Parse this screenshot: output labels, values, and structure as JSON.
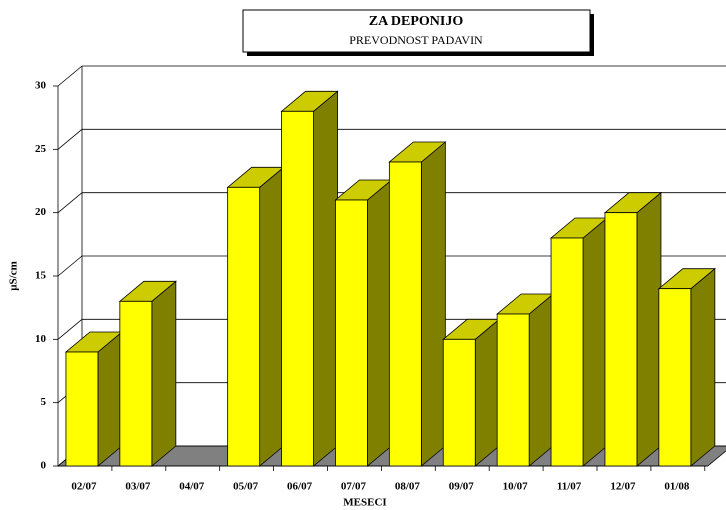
{
  "chart_data": {
    "type": "bar",
    "title": "ZA DEPONIJO",
    "subtitle": "PREVODNOST PADAVIN",
    "x_label": "MESECI",
    "y_label": "µS/cm",
    "categories": [
      "02/07",
      "03/07",
      "04/07",
      "05/07",
      "06/07",
      "07/07",
      "08/07",
      "09/07",
      "10/07",
      "11/07",
      "12/07",
      "01/08"
    ],
    "values": [
      9,
      13,
      null,
      22,
      28,
      21,
      24,
      10,
      12,
      18,
      20,
      14
    ],
    "color": "#ffff00",
    "ylim": [
      0,
      30
    ],
    "yticks": [
      0,
      5,
      10,
      15,
      20,
      25,
      30
    ],
    "grid": true
  }
}
